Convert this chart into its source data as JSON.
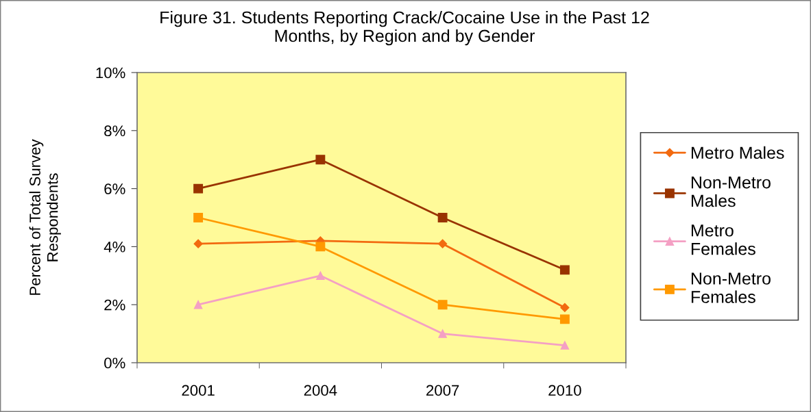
{
  "chart_data": {
    "type": "line",
    "title": "Figure 31. Students Reporting Crack/Cocaine Use in the Past 12\nMonths, by Region and by Gender",
    "ylabel": "Percent of Total Survey\nRespondents",
    "categories": [
      "2001",
      "2004",
      "2007",
      "2010"
    ],
    "series": [
      {
        "name": "Metro Males",
        "color": "#f26a10",
        "marker": "diamond",
        "values": [
          4.1,
          4.2,
          4.1,
          1.9
        ]
      },
      {
        "name": "Non-Metro\nMales",
        "color": "#993300",
        "marker": "square",
        "values": [
          6.0,
          7.0,
          5.0,
          3.2
        ]
      },
      {
        "name": "Metro\nFemales",
        "color": "#f4a0c4",
        "marker": "triangle",
        "values": [
          2.0,
          3.0,
          1.0,
          0.6
        ]
      },
      {
        "name": "Non-Metro\nFemales",
        "color": "#ff9900",
        "marker": "square",
        "values": [
          5.0,
          4.0,
          2.0,
          1.5
        ]
      }
    ],
    "ylim": [
      0,
      10
    ],
    "yticks": [
      {
        "value": 0,
        "label": "0%"
      },
      {
        "value": 2,
        "label": "2%"
      },
      {
        "value": 4,
        "label": "4%"
      },
      {
        "value": 6,
        "label": "6%"
      },
      {
        "value": 8,
        "label": "8%"
      },
      {
        "value": 10,
        "label": "10%"
      }
    ],
    "grid": false,
    "legend": "right",
    "line_style": "solid"
  }
}
